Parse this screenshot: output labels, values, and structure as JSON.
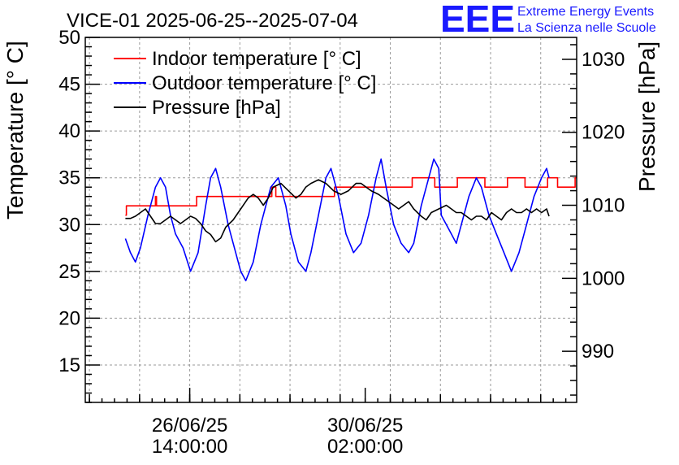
{
  "chart_data": {
    "type": "line",
    "title": "VICE-01 2025-06-25--2025-07-04",
    "ylabel": "Temperature [° C]",
    "y2label": "Pressure [hPa]",
    "ylim": [
      11,
      50
    ],
    "y2lim": [
      983.0,
      1033.0
    ],
    "xlim": [
      -0.5,
      9.3
    ],
    "x_unit": "days after 2025-06-25 00:00",
    "grid": true,
    "legend_position": "top-left",
    "yticks": [
      15,
      20,
      25,
      30,
      35,
      40,
      45,
      50
    ],
    "y2ticks": [
      990,
      1000,
      1010,
      1020,
      1030
    ],
    "xticks": [
      {
        "x": 1.583,
        "line1": "26/06/25",
        "line2": "14:00:00"
      },
      {
        "x": 5.083,
        "line1": "30/06/25",
        "line2": "02:00:00"
      }
    ],
    "series": [
      {
        "name": "Indoor temperature [° C]",
        "color": "#ff0000",
        "axis": "left",
        "step": true,
        "points": [
          [
            0.3,
            31
          ],
          [
            0.32,
            32
          ],
          [
            0.88,
            32
          ],
          [
            0.9,
            33
          ],
          [
            0.92,
            32
          ],
          [
            1.7,
            32
          ],
          [
            1.72,
            33
          ],
          [
            3.2,
            33
          ],
          [
            3.22,
            34
          ],
          [
            3.3,
            33
          ],
          [
            4.45,
            33
          ],
          [
            4.47,
            34
          ],
          [
            5.4,
            34
          ],
          [
            5.42,
            34
          ],
          [
            6.0,
            34
          ],
          [
            6.02,
            35
          ],
          [
            6.45,
            35
          ],
          [
            6.47,
            34
          ],
          [
            6.9,
            34
          ],
          [
            6.92,
            35
          ],
          [
            7.45,
            35
          ],
          [
            7.47,
            34
          ],
          [
            7.9,
            34
          ],
          [
            7.92,
            35
          ],
          [
            8.25,
            35
          ],
          [
            8.27,
            34
          ],
          [
            8.7,
            34
          ],
          [
            8.72,
            35
          ],
          [
            8.9,
            35
          ],
          [
            8.92,
            34
          ],
          [
            9.25,
            34
          ],
          [
            9.27,
            35
          ],
          [
            9.3,
            35
          ]
        ]
      },
      {
        "name": "Outdoor temperature [° C]",
        "color": "#0000ff",
        "axis": "left",
        "step": false,
        "points": [
          [
            0.3,
            28.5
          ],
          [
            0.4,
            27
          ],
          [
            0.5,
            26
          ],
          [
            0.6,
            27.5
          ],
          [
            0.75,
            31
          ],
          [
            0.9,
            34
          ],
          [
            1.0,
            35
          ],
          [
            1.1,
            34
          ],
          [
            1.2,
            31
          ],
          [
            1.3,
            29
          ],
          [
            1.45,
            27.5
          ],
          [
            1.6,
            25
          ],
          [
            1.75,
            27
          ],
          [
            1.9,
            32
          ],
          [
            2.0,
            35
          ],
          [
            2.1,
            36
          ],
          [
            2.2,
            34
          ],
          [
            2.35,
            30
          ],
          [
            2.5,
            27
          ],
          [
            2.6,
            25
          ],
          [
            2.7,
            24
          ],
          [
            2.85,
            26
          ],
          [
            3.0,
            30
          ],
          [
            3.2,
            34
          ],
          [
            3.35,
            35
          ],
          [
            3.5,
            32
          ],
          [
            3.6,
            29
          ],
          [
            3.75,
            26
          ],
          [
            3.9,
            25
          ],
          [
            4.0,
            27
          ],
          [
            4.15,
            31
          ],
          [
            4.3,
            35
          ],
          [
            4.4,
            36
          ],
          [
            4.55,
            33
          ],
          [
            4.7,
            29
          ],
          [
            4.85,
            27
          ],
          [
            5.0,
            28
          ],
          [
            5.15,
            31
          ],
          [
            5.3,
            35
          ],
          [
            5.4,
            37
          ],
          [
            5.5,
            34
          ],
          [
            5.65,
            30
          ],
          [
            5.8,
            28
          ],
          [
            5.95,
            27
          ],
          [
            6.05,
            28
          ],
          [
            6.2,
            32
          ],
          [
            6.35,
            35
          ],
          [
            6.45,
            37
          ],
          [
            6.55,
            36
          ],
          [
            6.6,
            31
          ],
          [
            6.7,
            30
          ],
          [
            6.8,
            29
          ],
          [
            6.9,
            28
          ],
          [
            7.0,
            30
          ],
          [
            7.15,
            33
          ],
          [
            7.3,
            35
          ],
          [
            7.4,
            34
          ],
          [
            7.55,
            31
          ],
          [
            7.7,
            29
          ],
          [
            7.85,
            27
          ],
          [
            8.0,
            25
          ],
          [
            8.15,
            27
          ],
          [
            8.3,
            30
          ],
          [
            8.45,
            33
          ],
          [
            8.6,
            35
          ],
          [
            8.7,
            36
          ],
          [
            8.75,
            35
          ]
        ]
      },
      {
        "name": "Pressure [hPa]",
        "color": "#000000",
        "axis": "right",
        "step": false,
        "points": [
          [
            0.3,
            1008.2
          ],
          [
            0.4,
            1008.2
          ],
          [
            0.5,
            1008.5
          ],
          [
            0.6,
            1009.0
          ],
          [
            0.7,
            1009.5
          ],
          [
            0.8,
            1008.5
          ],
          [
            0.9,
            1007.5
          ],
          [
            1.0,
            1007.5
          ],
          [
            1.1,
            1008.0
          ],
          [
            1.2,
            1008.5
          ],
          [
            1.3,
            1008.0
          ],
          [
            1.4,
            1007.5
          ],
          [
            1.5,
            1008.0
          ],
          [
            1.6,
            1008.5
          ],
          [
            1.7,
            1008.2
          ],
          [
            1.8,
            1007.5
          ],
          [
            1.9,
            1006.5
          ],
          [
            2.0,
            1006.0
          ],
          [
            2.1,
            1005.0
          ],
          [
            2.2,
            1005.5
          ],
          [
            2.3,
            1007.0
          ],
          [
            2.45,
            1008.0
          ],
          [
            2.6,
            1009.5
          ],
          [
            2.75,
            1011.0
          ],
          [
            2.85,
            1011.5
          ],
          [
            2.95,
            1011.0
          ],
          [
            3.05,
            1010.0
          ],
          [
            3.15,
            1011.0
          ],
          [
            3.25,
            1012.5
          ],
          [
            3.4,
            1013.0
          ],
          [
            3.55,
            1012.0
          ],
          [
            3.7,
            1011.0
          ],
          [
            3.8,
            1011.5
          ],
          [
            3.9,
            1012.5
          ],
          [
            4.0,
            1013.0
          ],
          [
            4.15,
            1013.5
          ],
          [
            4.3,
            1013.0
          ],
          [
            4.45,
            1012.0
          ],
          [
            4.6,
            1011.5
          ],
          [
            4.75,
            1012.0
          ],
          [
            4.9,
            1013.0
          ],
          [
            5.0,
            1013.0
          ],
          [
            5.1,
            1012.5
          ],
          [
            5.2,
            1012.0
          ],
          [
            5.35,
            1011.5
          ],
          [
            5.45,
            1011.0
          ],
          [
            5.55,
            1010.5
          ],
          [
            5.65,
            1010.0
          ],
          [
            5.75,
            1009.5
          ],
          [
            5.85,
            1010.0
          ],
          [
            5.95,
            1010.5
          ],
          [
            6.05,
            1009.5
          ],
          [
            6.2,
            1008.5
          ],
          [
            6.3,
            1008.0
          ],
          [
            6.4,
            1009.0
          ],
          [
            6.55,
            1009.5
          ],
          [
            6.7,
            1010.0
          ],
          [
            6.8,
            1009.5
          ],
          [
            6.9,
            1009.0
          ],
          [
            7.0,
            1009.0
          ],
          [
            7.1,
            1008.5
          ],
          [
            7.2,
            1008.0
          ],
          [
            7.3,
            1008.5
          ],
          [
            7.4,
            1008.5
          ],
          [
            7.5,
            1008.0
          ],
          [
            7.6,
            1009.0
          ],
          [
            7.7,
            1008.5
          ],
          [
            7.8,
            1008.0
          ],
          [
            7.9,
            1009.0
          ],
          [
            8.0,
            1009.5
          ],
          [
            8.1,
            1009.0
          ],
          [
            8.2,
            1009.0
          ],
          [
            8.3,
            1009.5
          ],
          [
            8.4,
            1009.0
          ],
          [
            8.5,
            1009.5
          ],
          [
            8.6,
            1009.0
          ],
          [
            8.7,
            1009.5
          ],
          [
            8.75,
            1008.5
          ]
        ]
      }
    ]
  },
  "logo": {
    "letters": "EEE",
    "line1": "Extreme Energy Events",
    "line2": "La Scienza nelle Scuole",
    "color": "#1a1aff"
  }
}
